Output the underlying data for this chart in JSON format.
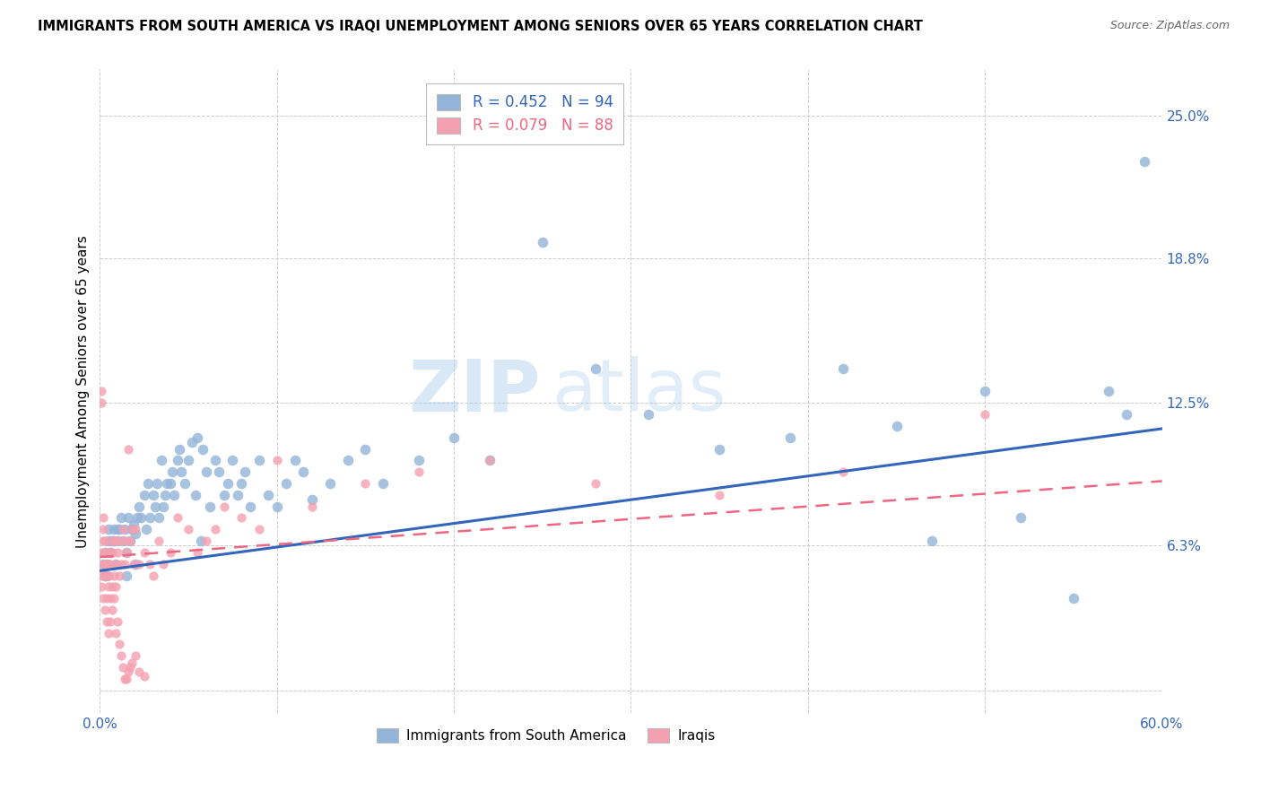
{
  "title": "IMMIGRANTS FROM SOUTH AMERICA VS IRAQI UNEMPLOYMENT AMONG SENIORS OVER 65 YEARS CORRELATION CHART",
  "source": "Source: ZipAtlas.com",
  "ylabel": "Unemployment Among Seniors over 65 years",
  "xlim": [
    0.0,
    0.6
  ],
  "ylim": [
    -0.01,
    0.27
  ],
  "yticks": [
    0.0,
    0.063,
    0.125,
    0.188,
    0.25
  ],
  "ytick_labels": [
    "",
    "6.3%",
    "12.5%",
    "18.8%",
    "25.0%"
  ],
  "xticks": [
    0.0,
    0.1,
    0.2,
    0.3,
    0.4,
    0.5,
    0.6
  ],
  "xtick_labels": [
    "0.0%",
    "",
    "",
    "",
    "",
    "",
    "60.0%"
  ],
  "blue_color": "#92B4D8",
  "pink_color": "#F4A0B0",
  "blue_line_color": "#3366BB",
  "pink_line_color": "#EE6680",
  "watermark_zip": "ZIP",
  "watermark_atlas": "atlas",
  "blue_slope": 0.103,
  "blue_intercept": 0.052,
  "pink_slope": 0.055,
  "pink_intercept": 0.058,
  "blue_x": [
    0.002,
    0.003,
    0.004,
    0.005,
    0.005,
    0.006,
    0.007,
    0.008,
    0.009,
    0.01,
    0.011,
    0.012,
    0.013,
    0.014,
    0.015,
    0.016,
    0.017,
    0.018,
    0.019,
    0.02,
    0.021,
    0.022,
    0.023,
    0.025,
    0.026,
    0.027,
    0.028,
    0.03,
    0.031,
    0.032,
    0.033,
    0.035,
    0.036,
    0.037,
    0.038,
    0.04,
    0.041,
    0.042,
    0.044,
    0.045,
    0.046,
    0.048,
    0.05,
    0.052,
    0.054,
    0.055,
    0.057,
    0.058,
    0.06,
    0.062,
    0.065,
    0.067,
    0.07,
    0.072,
    0.075,
    0.078,
    0.08,
    0.082,
    0.085,
    0.09,
    0.095,
    0.1,
    0.105,
    0.11,
    0.115,
    0.12,
    0.13,
    0.14,
    0.15,
    0.16,
    0.18,
    0.2,
    0.22,
    0.25,
    0.28,
    0.31,
    0.35,
    0.39,
    0.42,
    0.45,
    0.47,
    0.5,
    0.52,
    0.55,
    0.57,
    0.58,
    0.59,
    0.003,
    0.004,
    0.006,
    0.008,
    0.01,
    0.015,
    0.02
  ],
  "blue_y": [
    0.055,
    0.06,
    0.05,
    0.065,
    0.07,
    0.06,
    0.065,
    0.07,
    0.055,
    0.065,
    0.07,
    0.075,
    0.065,
    0.07,
    0.06,
    0.075,
    0.065,
    0.07,
    0.072,
    0.068,
    0.075,
    0.08,
    0.075,
    0.085,
    0.07,
    0.09,
    0.075,
    0.085,
    0.08,
    0.09,
    0.075,
    0.1,
    0.08,
    0.085,
    0.09,
    0.09,
    0.095,
    0.085,
    0.1,
    0.105,
    0.095,
    0.09,
    0.1,
    0.108,
    0.085,
    0.11,
    0.065,
    0.105,
    0.095,
    0.08,
    0.1,
    0.095,
    0.085,
    0.09,
    0.1,
    0.085,
    0.09,
    0.095,
    0.08,
    0.1,
    0.085,
    0.08,
    0.09,
    0.1,
    0.095,
    0.083,
    0.09,
    0.1,
    0.105,
    0.09,
    0.1,
    0.11,
    0.1,
    0.195,
    0.14,
    0.12,
    0.105,
    0.11,
    0.14,
    0.115,
    0.065,
    0.13,
    0.075,
    0.04,
    0.13,
    0.12,
    0.23,
    0.05,
    0.055,
    0.06,
    0.065,
    0.07,
    0.05,
    0.055
  ],
  "pink_x": [
    0.001,
    0.001,
    0.001,
    0.001,
    0.002,
    0.002,
    0.002,
    0.002,
    0.003,
    0.003,
    0.003,
    0.003,
    0.004,
    0.004,
    0.004,
    0.005,
    0.005,
    0.005,
    0.005,
    0.006,
    0.006,
    0.006,
    0.007,
    0.007,
    0.007,
    0.008,
    0.008,
    0.009,
    0.009,
    0.01,
    0.01,
    0.011,
    0.012,
    0.012,
    0.013,
    0.014,
    0.015,
    0.015,
    0.016,
    0.017,
    0.018,
    0.019,
    0.02,
    0.022,
    0.025,
    0.028,
    0.03,
    0.033,
    0.036,
    0.04,
    0.044,
    0.05,
    0.055,
    0.06,
    0.065,
    0.07,
    0.08,
    0.09,
    0.1,
    0.12,
    0.15,
    0.18,
    0.22,
    0.28,
    0.35,
    0.42,
    0.5,
    0.001,
    0.002,
    0.003,
    0.004,
    0.005,
    0.006,
    0.007,
    0.008,
    0.009,
    0.01,
    0.011,
    0.012,
    0.013,
    0.014,
    0.015,
    0.016,
    0.017,
    0.018,
    0.02,
    0.022,
    0.025
  ],
  "pink_y": [
    0.13,
    0.125,
    0.06,
    0.05,
    0.055,
    0.065,
    0.07,
    0.075,
    0.05,
    0.06,
    0.055,
    0.065,
    0.04,
    0.05,
    0.055,
    0.045,
    0.05,
    0.055,
    0.06,
    0.04,
    0.055,
    0.06,
    0.045,
    0.06,
    0.065,
    0.05,
    0.065,
    0.045,
    0.055,
    0.06,
    0.065,
    0.05,
    0.065,
    0.055,
    0.07,
    0.055,
    0.06,
    0.065,
    0.105,
    0.065,
    0.07,
    0.055,
    0.07,
    0.055,
    0.06,
    0.055,
    0.05,
    0.065,
    0.055,
    0.06,
    0.075,
    0.07,
    0.06,
    0.065,
    0.07,
    0.08,
    0.075,
    0.07,
    0.1,
    0.08,
    0.09,
    0.095,
    0.1,
    0.09,
    0.085,
    0.095,
    0.12,
    0.045,
    0.04,
    0.035,
    0.03,
    0.025,
    0.03,
    0.035,
    0.04,
    0.025,
    0.03,
    0.02,
    0.015,
    0.01,
    0.005,
    0.005,
    0.008,
    0.01,
    0.012,
    0.015,
    0.008,
    0.006
  ]
}
